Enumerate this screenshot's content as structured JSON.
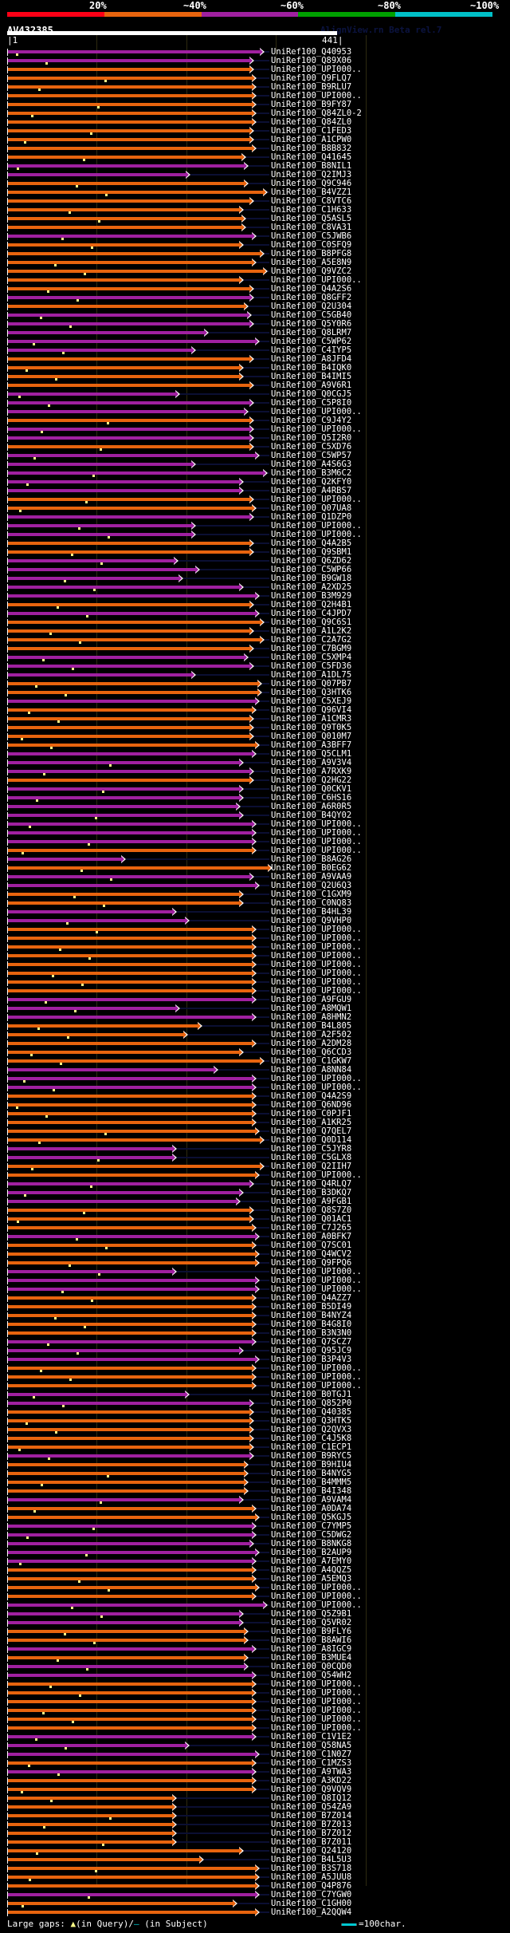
{
  "colors": {
    "red": "#ff0016",
    "orange": "#e8640e",
    "purple": "#a020a0",
    "green": "#00a000",
    "cyan": "#00c0c8",
    "gap": "#ffff88"
  },
  "scale_legend": {
    "labels": [
      "20%",
      "~40%",
      "~60%",
      "~80%",
      "~100%"
    ]
  },
  "header": {
    "query_name": "AV432385",
    "watermark": "AlignView.rn Beta rel.7",
    "start": "|1",
    "end": "441|"
  },
  "footer": {
    "large_gaps_label": "Large gaps:",
    "query_mark": "▲",
    "in_query": "(in Query)/",
    "subject_mark": "–",
    "in_subject": "(in Subject)",
    "scale_text": "=100char."
  },
  "hits": [
    {
      "label": "UniRef100_Q40953",
      "c": "purple",
      "e": 326
    },
    {
      "label": "UniRef100_Q89X06",
      "c": "purple",
      "e": 313
    },
    {
      "label": "UniRef100_UPI000..",
      "c": "orange",
      "e": 313
    },
    {
      "label": "UniRef100_Q9FLQ7",
      "c": "orange",
      "e": 316
    },
    {
      "label": "UniRef100_B9RLU7",
      "c": "orange",
      "e": 316
    },
    {
      "label": "UniRef100_UPI000..",
      "c": "orange",
      "e": 316
    },
    {
      "label": "UniRef100_B9FY87",
      "c": "orange",
      "e": 316
    },
    {
      "label": "UniRef100_Q84ZL0-2",
      "c": "orange",
      "e": 316
    },
    {
      "label": "UniRef100_Q84ZL0",
      "c": "orange",
      "e": 316
    },
    {
      "label": "UniRef100_C1FED3",
      "c": "orange",
      "e": 313
    },
    {
      "label": "UniRef100_A1CPW0",
      "c": "orange",
      "e": 313
    },
    {
      "label": "UniRef100_B8B832",
      "c": "orange",
      "e": 316
    },
    {
      "label": "UniRef100_Q41645",
      "c": "orange",
      "e": 303
    },
    {
      "label": "UniRef100_B8NIL1",
      "c": "purple",
      "e": 306
    },
    {
      "label": "UniRef100_Q2IMJ3",
      "c": "purple",
      "e": 233
    },
    {
      "label": "UniRef100_Q9C946",
      "c": "orange",
      "e": 306
    },
    {
      "label": "UniRef100_B4VZZ1",
      "c": "orange",
      "e": 330
    },
    {
      "label": "UniRef100_C8VTC6",
      "c": "orange",
      "e": 313
    },
    {
      "label": "UniRef100_C1H633",
      "c": "orange",
      "e": 300
    },
    {
      "label": "UniRef100_Q5ASL5",
      "c": "orange",
      "e": 303
    },
    {
      "label": "UniRef100_C8VA31",
      "c": "orange",
      "e": 303
    },
    {
      "label": "UniRef100_C5JWB6",
      "c": "purple",
      "e": 316
    },
    {
      "label": "UniRef100_C0SFQ9",
      "c": "orange",
      "e": 300
    },
    {
      "label": "UniRef100_B8PFG8",
      "c": "orange",
      "e": 326
    },
    {
      "label": "UniRef100_A5E8N9",
      "c": "orange",
      "e": 316
    },
    {
      "label": "UniRef100_Q9VZC2",
      "c": "orange",
      "e": 330
    },
    {
      "label": "UniRef100_UPI000..",
      "c": "orange",
      "e": 300
    },
    {
      "label": "UniRef100_Q4A2S6",
      "c": "orange",
      "e": 313
    },
    {
      "label": "UniRef100_Q8GFF2",
      "c": "purple",
      "e": 313
    },
    {
      "label": "UniRef100_Q2U304",
      "c": "orange",
      "e": 306
    },
    {
      "label": "UniRef100_C5GB40",
      "c": "purple",
      "e": 310
    },
    {
      "label": "UniRef100_Q5Y0R6",
      "c": "purple",
      "e": 313
    },
    {
      "label": "UniRef100_Q8LRM7",
      "c": "purple",
      "e": 256
    },
    {
      "label": "UniRef100_C5WP62",
      "c": "purple",
      "e": 320
    },
    {
      "label": "UniRef100_C4IYP5",
      "c": "purple",
      "e": 240
    },
    {
      "label": "UniRef100_A8JFD4",
      "c": "orange",
      "e": 313
    },
    {
      "label": "UniRef100_B4IQK0",
      "c": "orange",
      "e": 300
    },
    {
      "label": "UniRef100_B4IMI5",
      "c": "orange",
      "e": 300
    },
    {
      "label": "UniRef100_A9V6R1",
      "c": "orange",
      "e": 313
    },
    {
      "label": "UniRef100_Q0CGJ5",
      "c": "purple",
      "e": 220
    },
    {
      "label": "UniRef100_C5P8I0",
      "c": "purple",
      "e": 313
    },
    {
      "label": "UniRef100_UPI000..",
      "c": "purple",
      "e": 306
    },
    {
      "label": "UniRef100_C9J4Y2",
      "c": "orange",
      "e": 313
    },
    {
      "label": "UniRef100_UPI000..",
      "c": "purple",
      "e": 313
    },
    {
      "label": "UniRef100_Q5I2R0",
      "c": "purple",
      "e": 313
    },
    {
      "label": "UniRef100_C5XD76",
      "c": "orange",
      "e": 313
    },
    {
      "label": "UniRef100_C5WP57",
      "c": "purple",
      "e": 320
    },
    {
      "label": "UniRef100_A4S6G3",
      "c": "purple",
      "e": 240
    },
    {
      "label": "UniRef100_B3M6C2",
      "c": "purple",
      "e": 330
    },
    {
      "label": "UniRef100_Q2KFY0",
      "c": "purple",
      "e": 300
    },
    {
      "label": "UniRef100_A4RBS7",
      "c": "purple",
      "e": 300
    },
    {
      "label": "UniRef100_UPI000..",
      "c": "orange",
      "e": 313
    },
    {
      "label": "UniRef100_Q07UA8",
      "c": "orange",
      "e": 316
    },
    {
      "label": "UniRef100_Q1DZP0",
      "c": "purple",
      "e": 313
    },
    {
      "label": "UniRef100_UPI000..",
      "c": "purple",
      "e": 240
    },
    {
      "label": "UniRef100_UPI000..",
      "c": "purple",
      "e": 240
    },
    {
      "label": "UniRef100_Q4A2B5",
      "c": "orange",
      "e": 313
    },
    {
      "label": "UniRef100_Q9SBM1",
      "c": "orange",
      "e": 313
    },
    {
      "label": "UniRef100_Q6ZD62",
      "c": "purple",
      "e": 218
    },
    {
      "label": "UniRef100_C5WP66",
      "c": "purple",
      "e": 245
    },
    {
      "label": "UniRef100_B9GW18",
      "c": "purple",
      "e": 224
    },
    {
      "label": "UniRef100_A2XD25",
      "c": "purple",
      "e": 300
    },
    {
      "label": "UniRef100_B3M929",
      "c": "purple",
      "e": 320
    },
    {
      "label": "UniRef100_Q2H4B1",
      "c": "orange",
      "e": 313
    },
    {
      "label": "UniRef100_C4JPD7",
      "c": "purple",
      "e": 320
    },
    {
      "label": "UniRef100_Q9C6S1",
      "c": "orange",
      "e": 326
    },
    {
      "label": "UniRef100_A1L2K2",
      "c": "orange",
      "e": 313
    },
    {
      "label": "UniRef100_C2A7G2",
      "c": "orange",
      "e": 326
    },
    {
      "label": "UniRef100_C7BGM9",
      "c": "orange",
      "e": 313
    },
    {
      "label": "UniRef100_C5XMP4",
      "c": "purple",
      "e": 306
    },
    {
      "label": "UniRef100_C5FD36",
      "c": "purple",
      "e": 313
    },
    {
      "label": "UniRef100_A1DL75",
      "c": "purple",
      "e": 240
    },
    {
      "label": "UniRef100_Q07PB7",
      "c": "orange",
      "e": 323
    },
    {
      "label": "UniRef100_Q3HTK6",
      "c": "orange",
      "e": 323
    },
    {
      "label": "UniRef100_C5XEJ9",
      "c": "purple",
      "e": 320
    },
    {
      "label": "UniRef100_Q96VI4",
      "c": "orange",
      "e": 316
    },
    {
      "label": "UniRef100_A1CMR3",
      "c": "orange",
      "e": 313
    },
    {
      "label": "UniRef100_Q9T0K5",
      "c": "orange",
      "e": 313
    },
    {
      "label": "UniRef100_Q010M7",
      "c": "orange",
      "e": 313
    },
    {
      "label": "UniRef100_A3BFF7",
      "c": "orange",
      "e": 320
    },
    {
      "label": "UniRef100_Q5CLM1",
      "c": "purple",
      "e": 316
    },
    {
      "label": "UniRef100_A9V3V4",
      "c": "purple",
      "e": 300
    },
    {
      "label": "UniRef100_A7RXK9",
      "c": "purple",
      "e": 313
    },
    {
      "label": "UniRef100_Q2HG22",
      "c": "orange",
      "e": 313
    },
    {
      "label": "UniRef100_Q0CKV1",
      "c": "purple",
      "e": 300
    },
    {
      "label": "UniRef100_C6HS16",
      "c": "purple",
      "e": 300
    },
    {
      "label": "UniRef100_A6R0R5",
      "c": "purple",
      "e": 296
    },
    {
      "label": "UniRef100_B4QY02",
      "c": "purple",
      "e": 300
    },
    {
      "label": "UniRef100_UPI000..",
      "c": "purple",
      "e": 316
    },
    {
      "label": "UniRef100_UPI000..",
      "c": "purple",
      "e": 316
    },
    {
      "label": "UniRef100_UPI000..",
      "c": "purple",
      "e": 316
    },
    {
      "label": "UniRef100_UPI000..",
      "c": "orange",
      "e": 316
    },
    {
      "label": "UniRef100_B8AG26",
      "c": "purple",
      "e": 152
    },
    {
      "label": "UniRef100_B0EG62",
      "c": "orange",
      "e": 336
    },
    {
      "label": "UniRef100_A9VAA9",
      "c": "purple",
      "e": 313
    },
    {
      "label": "UniRef100_Q2U6Q3",
      "c": "purple",
      "e": 320
    },
    {
      "label": "UniRef100_C1GXM9",
      "c": "orange",
      "e": 300
    },
    {
      "label": "UniRef100_C0NQ83",
      "c": "orange",
      "e": 300
    },
    {
      "label": "UniRef100_B4HL39",
      "c": "purple",
      "e": 216
    },
    {
      "label": "UniRef100_Q9VHP0",
      "c": "purple",
      "e": 232
    },
    {
      "label": "UniRef100_UPI000..",
      "c": "orange",
      "e": 316
    },
    {
      "label": "UniRef100_UPI000..",
      "c": "orange",
      "e": 316
    },
    {
      "label": "UniRef100_UPI000..",
      "c": "orange",
      "e": 316
    },
    {
      "label": "UniRef100_UPI000..",
      "c": "orange",
      "e": 316
    },
    {
      "label": "UniRef100_UPI000..",
      "c": "orange",
      "e": 316
    },
    {
      "label": "UniRef100_UPI000..",
      "c": "orange",
      "e": 316
    },
    {
      "label": "UniRef100_UPI000..",
      "c": "orange",
      "e": 316
    },
    {
      "label": "UniRef100_UPI000..",
      "c": "orange",
      "e": 316
    },
    {
      "label": "UniRef100_A9FGU9",
      "c": "purple",
      "e": 316
    },
    {
      "label": "UniRef100_A8MQW1",
      "c": "purple",
      "e": 220
    },
    {
      "label": "UniRef100_A8HMN2",
      "c": "purple",
      "e": 316
    },
    {
      "label": "UniRef100_B4L805",
      "c": "orange",
      "e": 248
    },
    {
      "label": "UniRef100_A2F502",
      "c": "orange",
      "e": 230
    },
    {
      "label": "UniRef100_A2DM28",
      "c": "orange",
      "e": 316
    },
    {
      "label": "UniRef100_Q6CCD3",
      "c": "orange",
      "e": 300
    },
    {
      "label": "UniRef100_C1GKW7",
      "c": "orange",
      "e": 326
    },
    {
      "label": "UniRef100_A8NN84",
      "c": "purple",
      "e": 268
    },
    {
      "label": "UniRef100_UPI000..",
      "c": "purple",
      "e": 316
    },
    {
      "label": "UniRef100_UPI000..",
      "c": "purple",
      "e": 316
    },
    {
      "label": "UniRef100_Q4A2S9",
      "c": "orange",
      "e": 316
    },
    {
      "label": "UniRef100_Q6ND96",
      "c": "orange",
      "e": 316
    },
    {
      "label": "UniRef100_C0PJF1",
      "c": "orange",
      "e": 316
    },
    {
      "label": "UniRef100_A1KR25",
      "c": "orange",
      "e": 316
    },
    {
      "label": "UniRef100_Q7QEL7",
      "c": "orange",
      "e": 320
    },
    {
      "label": "UniRef100_Q0D114",
      "c": "orange",
      "e": 326
    },
    {
      "label": "UniRef100_C5JYR8",
      "c": "purple",
      "e": 216
    },
    {
      "label": "UniRef100_C5GLX8",
      "c": "purple",
      "e": 216
    },
    {
      "label": "UniRef100_Q2IIH7",
      "c": "orange",
      "e": 326
    },
    {
      "label": "UniRef100_UPI000..",
      "c": "orange",
      "e": 320
    },
    {
      "label": "UniRef100_Q4RLQ7",
      "c": "purple",
      "e": 313
    },
    {
      "label": "UniRef100_B3DKQ7",
      "c": "purple",
      "e": 300
    },
    {
      "label": "UniRef100_A9FGB1",
      "c": "purple",
      "e": 296
    },
    {
      "label": "UniRef100_Q8S7Z0",
      "c": "orange",
      "e": 313
    },
    {
      "label": "UniRef100_Q01AC1",
      "c": "orange",
      "e": 313
    },
    {
      "label": "UniRef100_C7J265",
      "c": "orange",
      "e": 316
    },
    {
      "label": "UniRef100_A0BFK7",
      "c": "purple",
      "e": 320
    },
    {
      "label": "UniRef100_Q7SC01",
      "c": "orange",
      "e": 316
    },
    {
      "label": "UniRef100_Q4WCV2",
      "c": "orange",
      "e": 320
    },
    {
      "label": "UniRef100_Q9FPQ6",
      "c": "orange",
      "e": 320
    },
    {
      "label": "UniRef100_UPI000..",
      "c": "purple",
      "e": 216
    },
    {
      "label": "UniRef100_UPI000..",
      "c": "purple",
      "e": 320
    },
    {
      "label": "UniRef100_UPI000..",
      "c": "purple",
      "e": 320
    },
    {
      "label": "UniRef100_Q4AZZ7",
      "c": "orange",
      "e": 316
    },
    {
      "label": "UniRef100_B5DI49",
      "c": "orange",
      "e": 316
    },
    {
      "label": "UniRef100_B4NYZ4",
      "c": "orange",
      "e": 316
    },
    {
      "label": "UniRef100_B4G8I0",
      "c": "orange",
      "e": 316
    },
    {
      "label": "UniRef100_B3N3N0",
      "c": "orange",
      "e": 316
    },
    {
      "label": "UniRef100_Q7SCZ7",
      "c": "purple",
      "e": 316
    },
    {
      "label": "UniRef100_Q95JC9",
      "c": "purple",
      "e": 300
    },
    {
      "label": "UniRef100_B3P4V3",
      "c": "purple",
      "e": 320
    },
    {
      "label": "UniRef100_UPI000..",
      "c": "orange",
      "e": 316
    },
    {
      "label": "UniRef100_UPI000..",
      "c": "orange",
      "e": 316
    },
    {
      "label": "UniRef100_UPI000..",
      "c": "orange",
      "e": 316
    },
    {
      "label": "UniRef100_B0TGJ1",
      "c": "purple",
      "e": 232
    },
    {
      "label": "UniRef100_Q852P0",
      "c": "purple",
      "e": 313
    },
    {
      "label": "UniRef100_Q40385",
      "c": "orange",
      "e": 313
    },
    {
      "label": "UniRef100_Q3HTK5",
      "c": "orange",
      "e": 313
    },
    {
      "label": "UniRef100_Q2QVX3",
      "c": "orange",
      "e": 313
    },
    {
      "label": "UniRef100_C4J5K8",
      "c": "orange",
      "e": 313
    },
    {
      "label": "UniRef100_C1ECP1",
      "c": "orange",
      "e": 313
    },
    {
      "label": "UniRef100_B9RYC5",
      "c": "purple",
      "e": 313
    },
    {
      "label": "UniRef100_B9HIU4",
      "c": "orange",
      "e": 306
    },
    {
      "label": "UniRef100_B4NYG5",
      "c": "orange",
      "e": 306
    },
    {
      "label": "UniRef100_B4MMM5",
      "c": "orange",
      "e": 306
    },
    {
      "label": "UniRef100_B4I348",
      "c": "orange",
      "e": 306
    },
    {
      "label": "UniRef100_A9VAM4",
      "c": "purple",
      "e": 300
    },
    {
      "label": "UniRef100_A0DA74",
      "c": "orange",
      "e": 316
    },
    {
      "label": "UniRef100_Q5KGJ5",
      "c": "orange",
      "e": 320
    },
    {
      "label": "UniRef100_C7YMP5",
      "c": "purple",
      "e": 316
    },
    {
      "label": "UniRef100_C5DWG2",
      "c": "purple",
      "e": 316
    },
    {
      "label": "UniRef100_B8NKG8",
      "c": "purple",
      "e": 313
    },
    {
      "label": "UniRef100_B2AUP9",
      "c": "purple",
      "e": 320
    },
    {
      "label": "UniRef100_A7EMY0",
      "c": "purple",
      "e": 316
    },
    {
      "label": "UniRef100_A4QQZ5",
      "c": "orange",
      "e": 316
    },
    {
      "label": "UniRef100_A5EMQ3",
      "c": "orange",
      "e": 316
    },
    {
      "label": "UniRef100_UPI000..",
      "c": "orange",
      "e": 320
    },
    {
      "label": "UniRef100_UPI000..",
      "c": "orange",
      "e": 316
    },
    {
      "label": "UniRef100_UPI000..",
      "c": "purple",
      "e": 330
    },
    {
      "label": "UniRef100_Q5Z9B1",
      "c": "purple",
      "e": 300
    },
    {
      "label": "UniRef100_Q5VR02",
      "c": "purple",
      "e": 300
    },
    {
      "label": "UniRef100_B9FLY6",
      "c": "orange",
      "e": 306
    },
    {
      "label": "UniRef100_B8AWI6",
      "c": "orange",
      "e": 306
    },
    {
      "label": "UniRef100_A8IGC9",
      "c": "purple",
      "e": 316
    },
    {
      "label": "UniRef100_B3MUE4",
      "c": "orange",
      "e": 306
    },
    {
      "label": "UniRef100_Q0CQD0",
      "c": "purple",
      "e": 306
    },
    {
      "label": "UniRef100_Q54WH2",
      "c": "purple",
      "e": 316
    },
    {
      "label": "UniRef100_UPI000..",
      "c": "orange",
      "e": 316
    },
    {
      "label": "UniRef100_UPI000..",
      "c": "orange",
      "e": 316
    },
    {
      "label": "UniRef100_UPI000..",
      "c": "orange",
      "e": 316
    },
    {
      "label": "UniRef100_UPI000..",
      "c": "orange",
      "e": 316
    },
    {
      "label": "UniRef100_UPI000..",
      "c": "orange",
      "e": 316
    },
    {
      "label": "UniRef100_UPI000..",
      "c": "orange",
      "e": 316
    },
    {
      "label": "UniRef100_C1V1E2",
      "c": "purple",
      "e": 316
    },
    {
      "label": "UniRef100_Q58NA5",
      "c": "purple",
      "e": 232
    },
    {
      "label": "UniRef100_C1N0Z7",
      "c": "purple",
      "e": 320
    },
    {
      "label": "UniRef100_C1MZS3",
      "c": "orange",
      "e": 316
    },
    {
      "label": "UniRef100_A9TWA3",
      "c": "purple",
      "e": 316
    },
    {
      "label": "UniRef100_A3KD22",
      "c": "orange",
      "e": 316
    },
    {
      "label": "UniRef100_Q9VQV9",
      "c": "orange",
      "e": 316
    },
    {
      "label": "UniRef100_Q8IQ12",
      "c": "orange",
      "e": 216
    },
    {
      "label": "UniRef100_Q54ZA9",
      "c": "orange",
      "e": 216
    },
    {
      "label": "UniRef100_B7Z014",
      "c": "orange",
      "e": 216
    },
    {
      "label": "UniRef100_B7Z013",
      "c": "orange",
      "e": 216
    },
    {
      "label": "UniRef100_B7Z012",
      "c": "orange",
      "e": 216
    },
    {
      "label": "UniRef100_B7Z011",
      "c": "orange",
      "e": 216
    },
    {
      "label": "UniRef100_Q24120",
      "c": "orange",
      "e": 300
    },
    {
      "label": "UniRef100_B4L5U3",
      "c": "orange",
      "e": 250
    },
    {
      "label": "UniRef100_B3S718",
      "c": "orange",
      "e": 320
    },
    {
      "label": "UniRef100_A5JUU8",
      "c": "orange",
      "e": 320
    },
    {
      "label": "UniRef100_Q4P876",
      "c": "orange",
      "e": 320
    },
    {
      "label": "UniRef100_C7YGW0",
      "c": "purple",
      "e": 320
    },
    {
      "label": "UniRef100_C1GH00",
      "c": "orange",
      "e": 292
    },
    {
      "label": "UniRef100_A2QQW4",
      "c": "orange",
      "e": 320
    }
  ]
}
